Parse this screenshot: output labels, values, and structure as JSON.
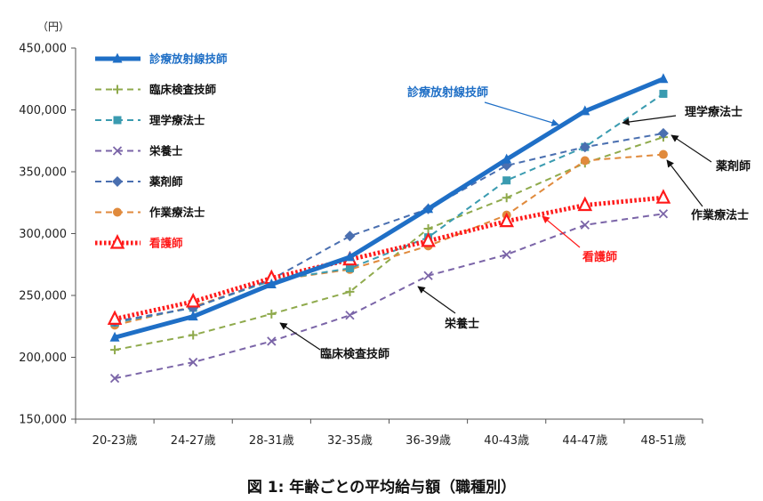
{
  "caption": "図 1: 年齢ごとの平均給与額（職種別）",
  "chart_data": {
    "type": "line",
    "unit_label": "（円）",
    "categories": [
      "20-23歳",
      "24-27歳",
      "28-31歳",
      "32-35歳",
      "36-39歳",
      "40-43歳",
      "44-47歳",
      "48-51歳"
    ],
    "ylim": [
      150000,
      450000
    ],
    "yticks": [
      150000,
      200000,
      250000,
      300000,
      350000,
      400000,
      450000
    ],
    "ytick_labels": [
      "150,000",
      "200,000",
      "250,000",
      "300,000",
      "350,000",
      "400,000",
      "450,000"
    ],
    "grid": false,
    "legend_position": "top-left",
    "series": [
      {
        "name": "診療放射線技師",
        "color": "#1f6fc6",
        "dash": "solid",
        "marker": "triangle",
        "width": 5,
        "values": [
          216000,
          233000,
          259000,
          281000,
          320000,
          360000,
          399000,
          425000
        ]
      },
      {
        "name": "臨床検査技師",
        "color": "#8faa4c",
        "dash": "dash",
        "marker": "plus",
        "width": 2,
        "values": [
          206000,
          218000,
          235000,
          253000,
          304000,
          329000,
          357000,
          378000
        ]
      },
      {
        "name": "理学療法士",
        "color": "#3a9bb0",
        "dash": "dash",
        "marker": "square",
        "width": 2,
        "values": [
          228000,
          240000,
          262000,
          272000,
          297000,
          343000,
          370000,
          413000
        ]
      },
      {
        "name": "栄養士",
        "color": "#7b65a8",
        "dash": "dash",
        "marker": "x",
        "width": 2,
        "values": [
          183000,
          196000,
          213000,
          234000,
          266000,
          283000,
          307000,
          316000
        ]
      },
      {
        "name": "薬剤師",
        "color": "#4a6fb0",
        "dash": "dash",
        "marker": "diamond",
        "width": 2,
        "values": [
          229000,
          240000,
          263000,
          298000,
          320000,
          355000,
          370000,
          381000
        ]
      },
      {
        "name": "作業療法士",
        "color": "#e08a3c",
        "dash": "dash",
        "marker": "circle",
        "width": 2,
        "values": [
          226000,
          241000,
          262000,
          271000,
          290000,
          315000,
          359000,
          364000
        ]
      },
      {
        "name": "看護師",
        "color": "#ff1a1a",
        "dash": "dot",
        "marker": "triangle-open",
        "width": 5,
        "values": [
          231000,
          245000,
          264000,
          279000,
          294000,
          310000,
          323000,
          329000
        ]
      }
    ],
    "annotations": [
      {
        "text": "診療放射線技師",
        "color": "#1f6fc6",
        "series": "診療放射線技師"
      },
      {
        "text": "理学療法士",
        "color": "#111111",
        "series": "理学療法士"
      },
      {
        "text": "薬剤師",
        "color": "#111111",
        "series": "薬剤師"
      },
      {
        "text": "作業療法士",
        "color": "#111111",
        "series": "作業療法士"
      },
      {
        "text": "看護師",
        "color": "#ff1a1a",
        "series": "看護師"
      },
      {
        "text": "栄養士",
        "color": "#111111",
        "series": "栄養士"
      },
      {
        "text": "臨床検査技師",
        "color": "#111111",
        "series": "臨床検査技師"
      }
    ]
  }
}
